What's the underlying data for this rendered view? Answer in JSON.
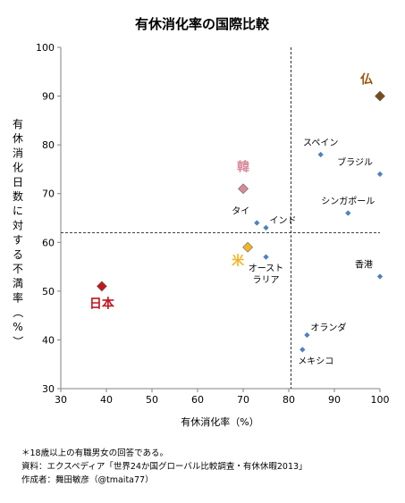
{
  "chart_data": {
    "type": "scatter",
    "title": "有休消化率の国際比較",
    "xlabel": "有休消化率（%）",
    "ylabel": "有休消化日数に対する不満率（%）",
    "xlim": [
      30,
      100
    ],
    "ylim": [
      30,
      100
    ],
    "xticks": [
      30,
      40,
      50,
      60,
      70,
      80,
      90,
      100
    ],
    "yticks": [
      30,
      40,
      50,
      60,
      70,
      80,
      90,
      100
    ],
    "reference_lines": {
      "x": 80.5,
      "y": 62
    },
    "points": [
      {
        "label": "仏",
        "x": 100,
        "y": 90,
        "marker": "diamond-large",
        "color": "#7a4a1e",
        "label_color": "#a0520a",
        "label_pos": "above-left"
      },
      {
        "label": "韓",
        "x": 70,
        "y": 71,
        "marker": "diamond-large",
        "color": "#d98a9a",
        "label_color": "#d98a9a",
        "label_pos": "above"
      },
      {
        "label": "米",
        "x": 71,
        "y": 59,
        "marker": "diamond-large",
        "color": "#f2b526",
        "label_color": "#f2b526",
        "label_pos": "below-left"
      },
      {
        "label": "日本",
        "x": 39,
        "y": 51,
        "marker": "diamond-large",
        "color": "#c0181e",
        "label_color": "#c0181e",
        "label_pos": "below"
      },
      {
        "label": "スペイン",
        "x": 87,
        "y": 78,
        "marker": "diamond-small",
        "color": "#4f81bd",
        "label_color": "#000000",
        "label_pos": "above"
      },
      {
        "label": "ブラジル",
        "x": 100,
        "y": 74,
        "marker": "diamond-small",
        "color": "#4f81bd",
        "label_color": "#000000",
        "label_pos": "above-left"
      },
      {
        "label": "シンガポール",
        "x": 93,
        "y": 66,
        "marker": "diamond-small",
        "color": "#4f81bd",
        "label_color": "#000000",
        "label_pos": "above"
      },
      {
        "label": "タイ",
        "x": 73,
        "y": 64,
        "marker": "diamond-small",
        "color": "#4f81bd",
        "label_color": "#000000",
        "label_pos": "above-left"
      },
      {
        "label": "インド",
        "x": 75,
        "y": 63,
        "marker": "diamond-small",
        "color": "#4f81bd",
        "label_color": "#000000",
        "label_pos": "above-right"
      },
      {
        "label": "オースト\nラリア",
        "x": 75,
        "y": 57,
        "marker": "diamond-small",
        "color": "#4f81bd",
        "label_color": "#000000",
        "label_pos": "below"
      },
      {
        "label": "香港",
        "x": 100,
        "y": 53,
        "marker": "diamond-small",
        "color": "#4f81bd",
        "label_color": "#000000",
        "label_pos": "above-left"
      },
      {
        "label": "オランダ",
        "x": 84,
        "y": 41,
        "marker": "diamond-small",
        "color": "#4f81bd",
        "label_color": "#000000",
        "label_pos": "above-right"
      },
      {
        "label": "メキシコ",
        "x": 83,
        "y": 38,
        "marker": "diamond-small",
        "color": "#4f81bd",
        "label_color": "#000000",
        "label_pos": "below-right"
      }
    ],
    "grid": false,
    "legend": "none"
  },
  "notes": [
    "＊18歳以上の有職男女の回答である。",
    "資料：エクスペディア「世界24か国グローバル比較調査・有休休暇2013」",
    "作成者：舞田敏彦（@tmaita77）"
  ]
}
